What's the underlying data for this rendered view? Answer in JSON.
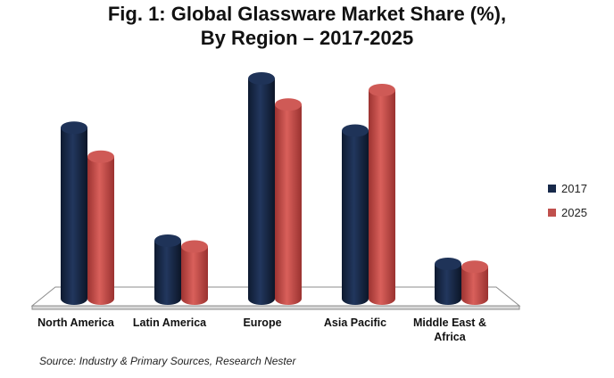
{
  "title_line1": "Fig. 1: Global Glassware Market Share (%),",
  "title_line2": "By Region – 2017-2025",
  "source": "Source: Industry & Primary Sources, Research Nester",
  "chart_data": {
    "type": "bar",
    "categories": [
      "North America",
      "Latin America",
      "Europe",
      "Asia Pacific",
      "Middle East & Africa"
    ],
    "series": [
      {
        "name": "2017",
        "color": "#17294a",
        "values": [
          29.5,
          10.0,
          38.0,
          29.0,
          6.0
        ]
      },
      {
        "name": "2025",
        "color": "#c0504d",
        "values": [
          24.5,
          9.0,
          33.5,
          36.0,
          5.5
        ]
      }
    ],
    "legend_position": "right",
    "grid": false
  }
}
